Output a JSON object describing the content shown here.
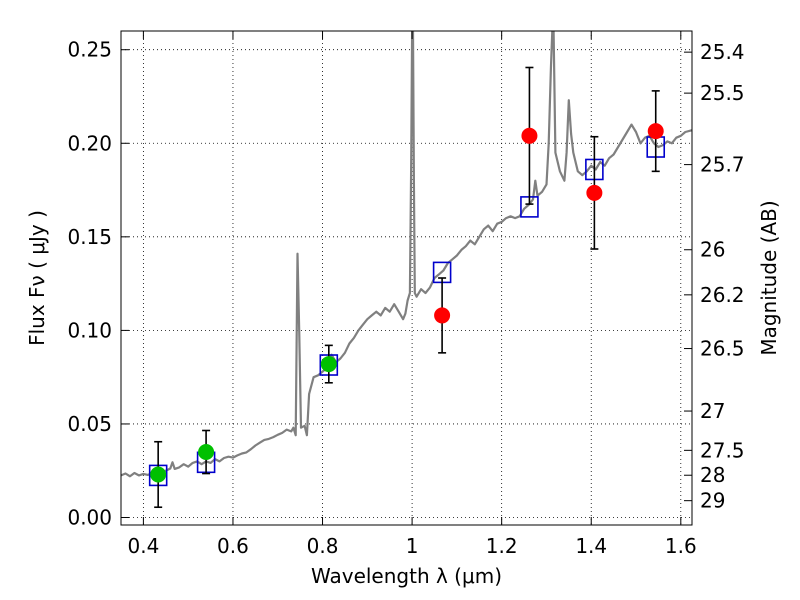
{
  "chart_data": {
    "type": "scatter",
    "title": "",
    "xlabel": "Wavelength  λ (μm)",
    "ylabel": "Flux  Fν  ( μJy )",
    "ylabel_right": "Magnitude (AB)",
    "xlim": [
      0.35,
      1.625
    ],
    "ylim": [
      -0.004,
      0.26
    ],
    "grid": true,
    "x_ticks": [
      0.4,
      0.6,
      0.8,
      1.0,
      1.2,
      1.4,
      1.6
    ],
    "x_tick_labels": [
      "0.4",
      "0.6",
      "0.8",
      "1",
      "1.2",
      "1.4",
      "1.6"
    ],
    "y_ticks": [
      0.0,
      0.05,
      0.1,
      0.15,
      0.2,
      0.25
    ],
    "y_tick_labels": [
      "0.00",
      "0.05",
      "0.10",
      "0.15",
      "0.20",
      "0.25"
    ],
    "right_ticks": [
      {
        "label": "25.4",
        "flux": 0.2487
      },
      {
        "label": "25.5",
        "flux": 0.2268
      },
      {
        "label": "25.7",
        "flux": 0.1886
      },
      {
        "label": "26",
        "flux": 0.1431
      },
      {
        "label": "26.2",
        "flux": 0.119
      },
      {
        "label": "26.5",
        "flux": 0.0903
      },
      {
        "label": "27",
        "flux": 0.0569
      },
      {
        "label": "27.5",
        "flux": 0.0359
      },
      {
        "label": "28",
        "flux": 0.0226
      },
      {
        "label": "29",
        "flux": 0.009
      }
    ],
    "series": [
      {
        "type": "line",
        "color": "#808080",
        "points": [
          [
            0.35,
            0.0225
          ],
          [
            0.36,
            0.0235
          ],
          [
            0.37,
            0.022
          ],
          [
            0.38,
            0.0238
          ],
          [
            0.39,
            0.0225
          ],
          [
            0.4,
            0.0233
          ],
          [
            0.41,
            0.0228
          ],
          [
            0.42,
            0.0238
          ],
          [
            0.43,
            0.0232
          ],
          [
            0.44,
            0.024
          ],
          [
            0.45,
            0.025
          ],
          [
            0.46,
            0.0262
          ],
          [
            0.465,
            0.0295
          ],
          [
            0.47,
            0.026
          ],
          [
            0.48,
            0.0268
          ],
          [
            0.49,
            0.0285
          ],
          [
            0.5,
            0.0272
          ],
          [
            0.51,
            0.0292
          ],
          [
            0.52,
            0.03
          ],
          [
            0.53,
            0.0285
          ],
          [
            0.54,
            0.03
          ],
          [
            0.55,
            0.0292
          ],
          [
            0.56,
            0.0312
          ],
          [
            0.57,
            0.03
          ],
          [
            0.58,
            0.0318
          ],
          [
            0.59,
            0.0325
          ],
          [
            0.6,
            0.032
          ],
          [
            0.61,
            0.0332
          ],
          [
            0.62,
            0.0342
          ],
          [
            0.63,
            0.0348
          ],
          [
            0.64,
            0.0365
          ],
          [
            0.65,
            0.0385
          ],
          [
            0.66,
            0.04
          ],
          [
            0.67,
            0.0415
          ],
          [
            0.68,
            0.042
          ],
          [
            0.69,
            0.043
          ],
          [
            0.7,
            0.0442
          ],
          [
            0.71,
            0.0452
          ],
          [
            0.72,
            0.047
          ],
          [
            0.73,
            0.046
          ],
          [
            0.735,
            0.048
          ],
          [
            0.74,
            0.044
          ],
          [
            0.744,
            0.141
          ],
          [
            0.748,
            0.1
          ],
          [
            0.752,
            0.048
          ],
          [
            0.76,
            0.049
          ],
          [
            0.765,
            0.044
          ],
          [
            0.77,
            0.066
          ],
          [
            0.78,
            0.075
          ],
          [
            0.79,
            0.076
          ],
          [
            0.8,
            0.078
          ],
          [
            0.81,
            0.08
          ],
          [
            0.82,
            0.087
          ],
          [
            0.83,
            0.083
          ],
          [
            0.84,
            0.085
          ],
          [
            0.85,
            0.088
          ],
          [
            0.86,
            0.093
          ],
          [
            0.87,
            0.096
          ],
          [
            0.88,
            0.1
          ],
          [
            0.89,
            0.103
          ],
          [
            0.9,
            0.106
          ],
          [
            0.91,
            0.108
          ],
          [
            0.92,
            0.11
          ],
          [
            0.93,
            0.108
          ],
          [
            0.94,
            0.112
          ],
          [
            0.95,
            0.11
          ],
          [
            0.96,
            0.114
          ],
          [
            0.97,
            0.11
          ],
          [
            0.98,
            0.106
          ],
          [
            0.985,
            0.109
          ],
          [
            0.99,
            0.116
          ],
          [
            0.995,
            0.12
          ],
          [
            0.998,
            0.19
          ],
          [
            1.0,
            0.26
          ],
          [
            1.002,
            0.26
          ],
          [
            1.004,
            0.18
          ],
          [
            1.006,
            0.12
          ],
          [
            1.01,
            0.118
          ],
          [
            1.02,
            0.122
          ],
          [
            1.03,
            0.12
          ],
          [
            1.04,
            0.123
          ],
          [
            1.05,
            0.128
          ],
          [
            1.06,
            0.13
          ],
          [
            1.07,
            0.132
          ],
          [
            1.08,
            0.136
          ],
          [
            1.09,
            0.138
          ],
          [
            1.1,
            0.14
          ],
          [
            1.11,
            0.143
          ],
          [
            1.12,
            0.145
          ],
          [
            1.13,
            0.148
          ],
          [
            1.14,
            0.146
          ],
          [
            1.15,
            0.15
          ],
          [
            1.16,
            0.154
          ],
          [
            1.17,
            0.156
          ],
          [
            1.18,
            0.153
          ],
          [
            1.19,
            0.157
          ],
          [
            1.2,
            0.158
          ],
          [
            1.21,
            0.16
          ],
          [
            1.22,
            0.161
          ],
          [
            1.23,
            0.16
          ],
          [
            1.24,
            0.161
          ],
          [
            1.25,
            0.165
          ],
          [
            1.26,
            0.167
          ],
          [
            1.27,
            0.17
          ],
          [
            1.275,
            0.18
          ],
          [
            1.28,
            0.172
          ],
          [
            1.29,
            0.174
          ],
          [
            1.3,
            0.178
          ],
          [
            1.305,
            0.2
          ],
          [
            1.31,
            0.24
          ],
          [
            1.313,
            0.26
          ],
          [
            1.316,
            0.26
          ],
          [
            1.32,
            0.195
          ],
          [
            1.33,
            0.185
          ],
          [
            1.34,
            0.18
          ],
          [
            1.345,
            0.195
          ],
          [
            1.35,
            0.223
          ],
          [
            1.355,
            0.205
          ],
          [
            1.36,
            0.195
          ],
          [
            1.37,
            0.185
          ],
          [
            1.38,
            0.183
          ],
          [
            1.39,
            0.185
          ],
          [
            1.4,
            0.188
          ],
          [
            1.41,
            0.186
          ],
          [
            1.42,
            0.19
          ],
          [
            1.43,
            0.188
          ],
          [
            1.44,
            0.192
          ],
          [
            1.45,
            0.194
          ],
          [
            1.46,
            0.198
          ],
          [
            1.47,
            0.202
          ],
          [
            1.48,
            0.206
          ],
          [
            1.49,
            0.21
          ],
          [
            1.5,
            0.206
          ],
          [
            1.51,
            0.2
          ],
          [
            1.52,
            0.203
          ],
          [
            1.53,
            0.204
          ],
          [
            1.54,
            0.2
          ],
          [
            1.55,
            0.198
          ],
          [
            1.56,
            0.199
          ],
          [
            1.57,
            0.201
          ],
          [
            1.58,
            0.2
          ],
          [
            1.59,
            0.203
          ],
          [
            1.6,
            0.204
          ],
          [
            1.61,
            0.206
          ],
          [
            1.625,
            0.207
          ]
        ]
      },
      {
        "type": "markers",
        "marker": "open-square",
        "color": "#0000cc",
        "points": [
          [
            0.433,
            0.0225
          ],
          [
            0.54,
            0.0295
          ],
          [
            0.814,
            0.0815
          ],
          [
            1.067,
            0.131
          ],
          [
            1.262,
            0.166
          ],
          [
            1.407,
            0.186
          ],
          [
            1.544,
            0.198
          ]
        ]
      },
      {
        "type": "markers",
        "marker": "filled-circle",
        "color": "#00c000",
        "points": [
          {
            "x": 0.433,
            "y": 0.023,
            "err": 0.0175
          },
          {
            "x": 0.54,
            "y": 0.035,
            "err": 0.0115
          },
          {
            "x": 0.814,
            "y": 0.082,
            "err": 0.01
          }
        ]
      },
      {
        "type": "markers",
        "marker": "filled-circle",
        "color": "#ff0000",
        "points": [
          {
            "x": 1.067,
            "y": 0.108,
            "err": 0.02
          },
          {
            "x": 1.262,
            "y": 0.204,
            "err": 0.0365
          },
          {
            "x": 1.407,
            "y": 0.1735,
            "err": 0.03
          },
          {
            "x": 1.544,
            "y": 0.2065,
            "err": 0.0215
          }
        ]
      }
    ]
  }
}
